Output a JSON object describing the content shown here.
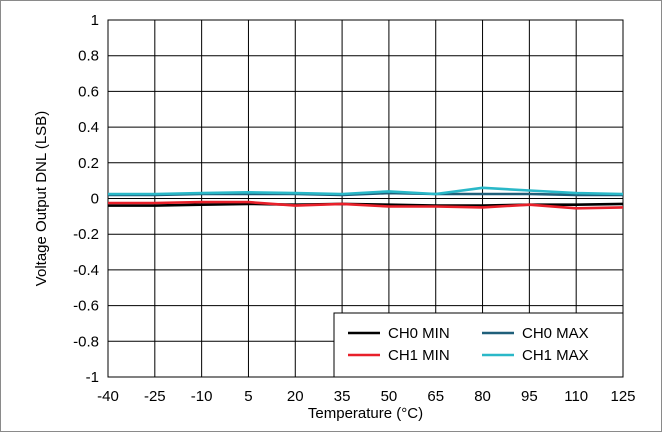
{
  "chart_data": {
    "type": "line",
    "title": "",
    "xlabel": "Temperature (°C)",
    "ylabel": "Voltage Output DNL (LSB)",
    "x": [
      -40,
      -25,
      -10,
      5,
      20,
      35,
      50,
      65,
      80,
      95,
      110,
      125
    ],
    "x_tick_labels": [
      "-40",
      "-25",
      "-10",
      "5",
      "20",
      "35",
      "50",
      "65",
      "80",
      "95",
      "110",
      "125"
    ],
    "y_tick_labels": [
      "1",
      "0.8",
      "0.6",
      "0.4",
      "0.2",
      "0",
      "-0.2",
      "-0.4",
      "-0.6",
      "-0.8",
      "-1"
    ],
    "xlim": [
      -40,
      125
    ],
    "ylim": [
      -1,
      1
    ],
    "grid": true,
    "legend_position": "bottom-right",
    "series": [
      {
        "name": "CH0 MIN",
        "color": "#000000",
        "values": [
          -0.04,
          -0.04,
          -0.035,
          -0.03,
          -0.035,
          -0.03,
          -0.035,
          -0.04,
          -0.04,
          -0.035,
          -0.035,
          -0.03
        ]
      },
      {
        "name": "CH0 MAX",
        "color": "#1f5f7a",
        "values": [
          0.02,
          0.02,
          0.025,
          0.025,
          0.025,
          0.02,
          0.03,
          0.025,
          0.025,
          0.025,
          0.02,
          0.02
        ]
      },
      {
        "name": "CH1 MIN",
        "color": "#e8202a",
        "values": [
          -0.025,
          -0.025,
          -0.02,
          -0.02,
          -0.04,
          -0.03,
          -0.045,
          -0.045,
          -0.05,
          -0.035,
          -0.055,
          -0.05
        ]
      },
      {
        "name": "CH1 MAX",
        "color": "#2ab8c8",
        "values": [
          0.025,
          0.025,
          0.03,
          0.035,
          0.03,
          0.025,
          0.04,
          0.025,
          0.06,
          0.045,
          0.03,
          0.025
        ]
      }
    ]
  }
}
